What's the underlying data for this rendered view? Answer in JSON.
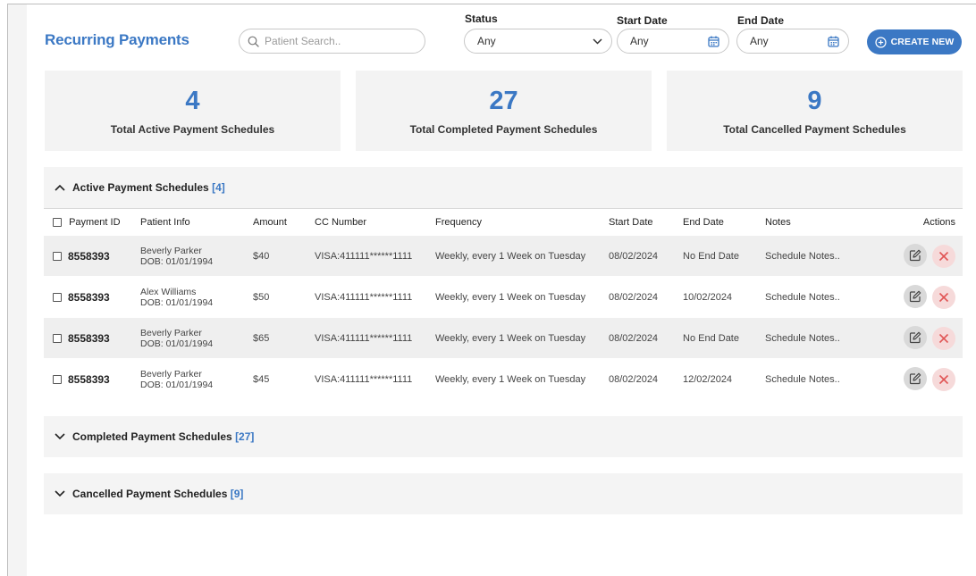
{
  "header": {
    "title": "Recurring Payments",
    "search_placeholder": "Patient Search..",
    "status_label": "Status",
    "status_value": "Any",
    "start_date_label": "Start Date",
    "start_date_value": "Any",
    "end_date_label": "End Date",
    "end_date_value": "Any",
    "create_label": "CREATE NEW"
  },
  "stats": [
    {
      "value": "4",
      "label": "Total Active Payment Schedules"
    },
    {
      "value": "27",
      "label": "Total Completed Payment Schedules"
    },
    {
      "value": "9",
      "label": "Total Cancelled Payment Schedules"
    }
  ],
  "active": {
    "title": "Active Payment Schedules",
    "count": "[4]",
    "columns": [
      "Payment ID",
      "Patient Info",
      "Amount",
      "CC Number",
      "Frequency",
      "Start Date",
      "End Date",
      "Notes",
      "Actions"
    ],
    "rows": [
      {
        "id": "8558393",
        "name": "Beverly Parker",
        "dob": "DOB: 01/01/1994",
        "amount": "$40",
        "cc": "VISA:411111******1111",
        "frequency": "Weekly, every 1 Week on Tuesday",
        "start": "08/02/2024",
        "end": "No End Date",
        "notes": "Schedule Notes.."
      },
      {
        "id": "8558393",
        "name": "Alex Williams",
        "dob": "DOB: 01/01/1994",
        "amount": "$50",
        "cc": "VISA:411111******1111",
        "frequency": "Weekly, every 1 Week on Tuesday",
        "start": "08/02/2024",
        "end": "10/02/2024",
        "notes": "Schedule Notes.."
      },
      {
        "id": "8558393",
        "name": "Beverly Parker",
        "dob": "DOB: 01/01/1994",
        "amount": "$65",
        "cc": "VISA:411111******1111",
        "frequency": "Weekly, every 1 Week on Tuesday",
        "start": "08/02/2024",
        "end": "No End Date",
        "notes": "Schedule Notes.."
      },
      {
        "id": "8558393",
        "name": "Beverly Parker",
        "dob": "DOB: 01/01/1994",
        "amount": "$45",
        "cc": "VISA:411111******1111",
        "frequency": "Weekly, every 1 Week on Tuesday",
        "start": "08/02/2024",
        "end": "12/02/2024",
        "notes": "Schedule Notes.."
      }
    ]
  },
  "completed": {
    "title": "Completed Payment Schedules",
    "count": "[27]"
  },
  "cancelled": {
    "title": "Cancelled Payment Schedules",
    "count": "[9]"
  },
  "colors": {
    "accent": "#3b78c4",
    "panel": "#f4f4f4",
    "delete": "#e05555"
  }
}
